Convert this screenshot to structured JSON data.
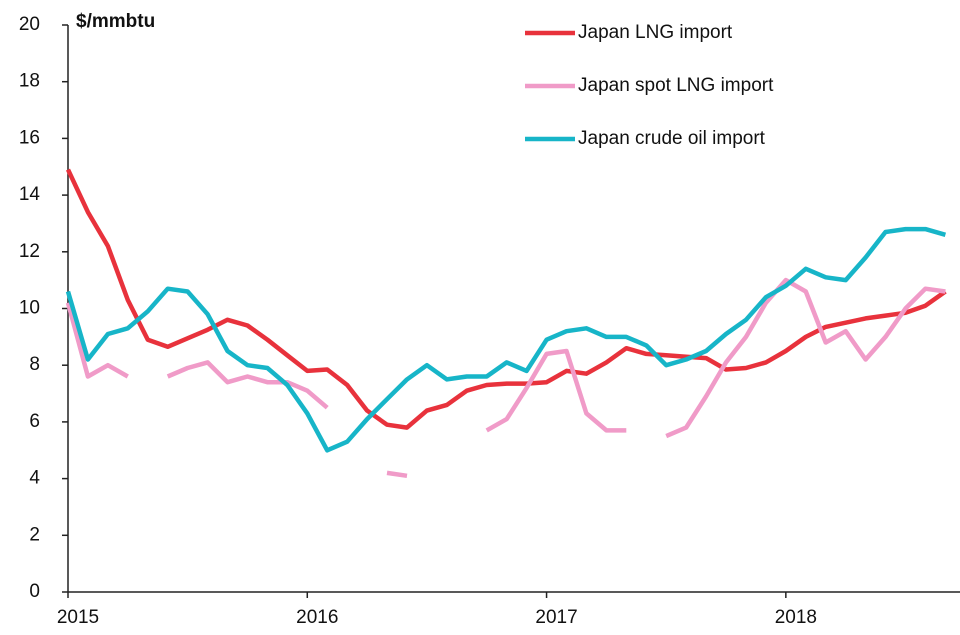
{
  "chart_data": {
    "type": "line",
    "y_label": "$/mmbtu",
    "categories": [
      "2015",
      null,
      null,
      null,
      null,
      null,
      null,
      null,
      null,
      null,
      null,
      null,
      "2016",
      null,
      null,
      null,
      null,
      null,
      null,
      null,
      null,
      null,
      null,
      null,
      "2017",
      null,
      null,
      null,
      null,
      null,
      null,
      null,
      null,
      null,
      null,
      null,
      "2018",
      null,
      null,
      null,
      null,
      null,
      null,
      null,
      null
    ],
    "series": [
      {
        "name": "Japan LNG import",
        "color": "#e8323c",
        "values": [
          14.9,
          13.4,
          12.2,
          10.3,
          8.9,
          8.65,
          8.95,
          9.25,
          9.6,
          9.4,
          8.9,
          8.35,
          7.8,
          7.85,
          7.3,
          6.4,
          5.9,
          5.8,
          6.4,
          6.6,
          7.1,
          7.3,
          7.35,
          7.35,
          7.4,
          7.8,
          7.7,
          8.1,
          8.6,
          8.4,
          8.35,
          8.3,
          8.25,
          7.85,
          7.9,
          8.1,
          8.5,
          9.0,
          9.35,
          9.5,
          9.65,
          9.75,
          9.85,
          10.1,
          10.6
        ]
      },
      {
        "name": "Japan spot LNG import",
        "color": "#f09bc8",
        "values": [
          10.2,
          7.6,
          8.0,
          7.6,
          null,
          7.6,
          7.9,
          8.1,
          7.4,
          7.6,
          7.4,
          7.4,
          7.1,
          6.5,
          null,
          null,
          4.2,
          4.1,
          null,
          null,
          null,
          5.7,
          6.1,
          7.2,
          8.4,
          8.5,
          6.3,
          5.7,
          5.7,
          null,
          5.5,
          5.8,
          6.9,
          8.1,
          9.0,
          10.2,
          11.0,
          10.6,
          8.8,
          9.2,
          8.2,
          9.0,
          10.0,
          10.7,
          10.6
        ]
      },
      {
        "name": "Japan crude oil import",
        "color": "#17b5c8",
        "values": [
          10.6,
          8.2,
          9.1,
          9.3,
          9.9,
          10.7,
          10.6,
          9.8,
          8.5,
          8.0,
          7.9,
          7.3,
          6.3,
          5.0,
          5.3,
          6.1,
          6.8,
          7.5,
          8.0,
          7.5,
          7.6,
          7.6,
          8.1,
          7.8,
          8.9,
          9.2,
          9.3,
          9.0,
          9.0,
          8.7,
          8.0,
          8.2,
          8.5,
          9.1,
          9.6,
          10.4,
          10.8,
          11.4,
          11.1,
          11.0,
          11.8,
          12.7,
          12.8,
          12.8,
          12.6
        ]
      }
    ],
    "ylim": [
      0,
      20
    ],
    "yticks": [
      0,
      2,
      4,
      6,
      8,
      10,
      12,
      14,
      16,
      18,
      20
    ],
    "grid": false
  }
}
